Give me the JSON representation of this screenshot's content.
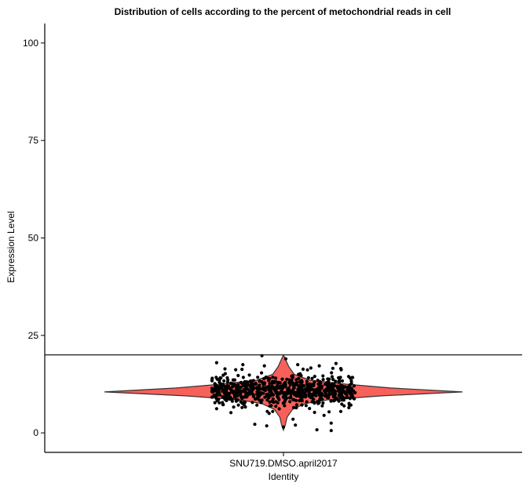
{
  "chart_data": {
    "type": "violin",
    "title": "Distribution of cells according to the percent of metochondrial reads in cell",
    "xlabel": "Identity",
    "ylabel": "Expression Level",
    "categories": [
      "SNU719.DMSO.april2017"
    ],
    "ylim": [
      -5,
      105
    ],
    "yticks": [
      0,
      25,
      50,
      75,
      100
    ],
    "threshold_line": 20,
    "grid": false,
    "legend": "none",
    "colors": {
      "violin_fill": "#F8605A",
      "outline": "#333333",
      "point": "#000000"
    },
    "series": [
      {
        "category": "SNU719.DMSO.april2017",
        "density_profile": [
          {
            "y": 0.7,
            "w": 0.0
          },
          {
            "y": 2.0,
            "w": 0.01
          },
          {
            "y": 4.0,
            "w": 0.02
          },
          {
            "y": 6.0,
            "w": 0.05
          },
          {
            "y": 7.5,
            "w": 0.12
          },
          {
            "y": 8.5,
            "w": 0.25
          },
          {
            "y": 9.5,
            "w": 0.55
          },
          {
            "y": 10.5,
            "w": 1.0
          },
          {
            "y": 11.5,
            "w": 0.6
          },
          {
            "y": 12.5,
            "w": 0.35
          },
          {
            "y": 13.5,
            "w": 0.15
          },
          {
            "y": 15.0,
            "w": 0.06
          },
          {
            "y": 17.0,
            "w": 0.03
          },
          {
            "y": 18.5,
            "w": 0.015
          },
          {
            "y": 20.0,
            "w": 0.0
          }
        ],
        "points": [
          {
            "x": -0.28,
            "y": 18.0
          },
          {
            "x": -0.09,
            "y": 19.8
          },
          {
            "x": 0.01,
            "y": 19.0
          },
          {
            "x": -0.17,
            "y": 17.5
          },
          {
            "x": -0.08,
            "y": 17.2
          },
          {
            "x": 0.06,
            "y": 17.5
          },
          {
            "x": 0.22,
            "y": 17.8
          },
          {
            "x": 0.15,
            "y": 17.2
          },
          {
            "x": -0.2,
            "y": 16.2
          },
          {
            "x": 0.24,
            "y": 16.5
          },
          {
            "x": -0.07,
            "y": 1.8
          },
          {
            "x": -0.28,
            "y": 6.2
          },
          {
            "x": -0.06,
            "y": 5.0
          },
          {
            "x": -0.12,
            "y": 2.2
          },
          {
            "x": 0.04,
            "y": 3.5
          },
          {
            "x": 0.05,
            "y": 2.0
          },
          {
            "x": 0.17,
            "y": 4.5
          },
          {
            "x": 0.2,
            "y": 2.5
          },
          {
            "x": 0.14,
            "y": 0.8
          },
          {
            "x": 0.2,
            "y": 0.6
          },
          {
            "x": 0.24,
            "y": 5.5
          },
          {
            "x": -0.22,
            "y": 5.2
          },
          {
            "x": 0.0,
            "y": 1.5
          }
        ]
      }
    ]
  }
}
